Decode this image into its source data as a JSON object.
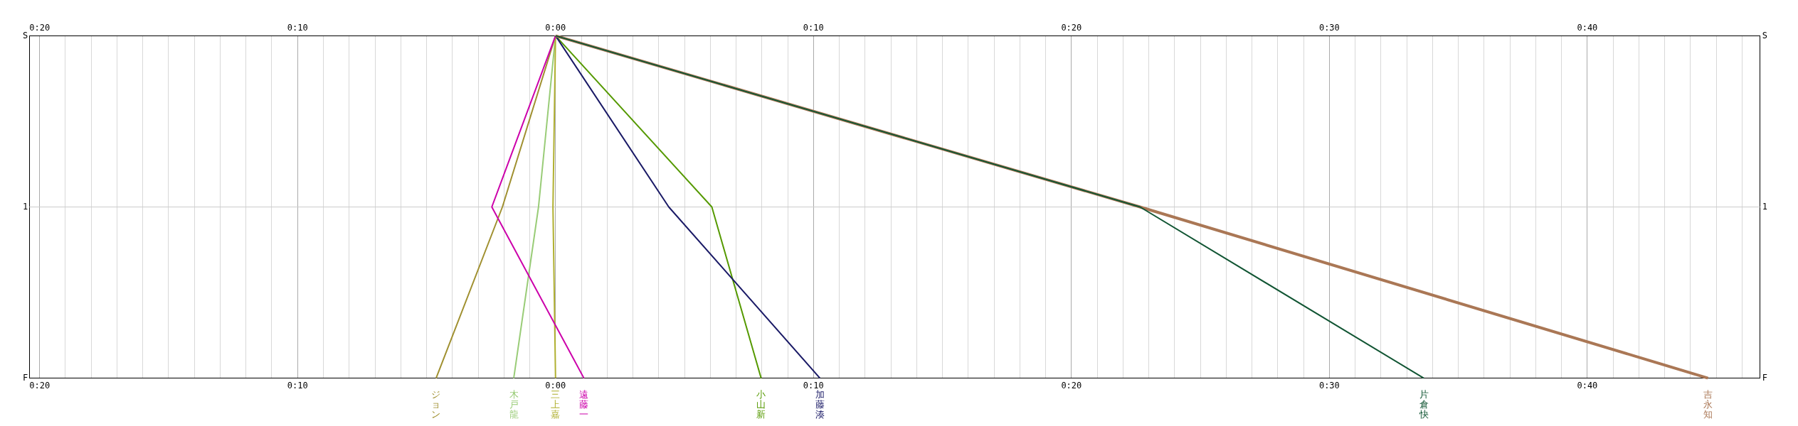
{
  "chart_data": {
    "type": "line",
    "grid": "x",
    "ref_lines": [
      {
        "axis": "y",
        "value": "1",
        "color": "#cccccc"
      }
    ],
    "legend": false,
    "marker": "none",
    "line_style": "solid",
    "xlim": [
      -20.4,
      46.7
    ],
    "x2lim": [
      -20.4,
      46.7
    ],
    "xticks": [
      {
        "value": -20,
        "label": "0:20"
      },
      {
        "value": -19,
        "label": null
      },
      {
        "value": -18,
        "label": null
      },
      {
        "value": -17,
        "label": null
      },
      {
        "value": -16,
        "label": null
      },
      {
        "value": -15,
        "label": null
      },
      {
        "value": -14,
        "label": null
      },
      {
        "value": -13,
        "label": null
      },
      {
        "value": -12,
        "label": null
      },
      {
        "value": -11,
        "label": null
      },
      {
        "value": -10,
        "label": "0:10"
      },
      {
        "value": -9,
        "label": null
      },
      {
        "value": -8,
        "label": null
      },
      {
        "value": -7,
        "label": null
      },
      {
        "value": -6,
        "label": null
      },
      {
        "value": -5,
        "label": null
      },
      {
        "value": -4,
        "label": null
      },
      {
        "value": -3,
        "label": null
      },
      {
        "value": -2,
        "label": null
      },
      {
        "value": -1,
        "label": null
      },
      {
        "value": 0,
        "label": "0:00"
      },
      {
        "value": 1,
        "label": null
      },
      {
        "value": 2,
        "label": null
      },
      {
        "value": 3,
        "label": null
      },
      {
        "value": 4,
        "label": null
      },
      {
        "value": 5,
        "label": null
      },
      {
        "value": 6,
        "label": null
      },
      {
        "value": 7,
        "label": null
      },
      {
        "value": 8,
        "label": null
      },
      {
        "value": 9,
        "label": null
      },
      {
        "value": 10,
        "label": "0:10"
      },
      {
        "value": 11,
        "label": null
      },
      {
        "value": 12,
        "label": null
      },
      {
        "value": 13,
        "label": null
      },
      {
        "value": 14,
        "label": null
      },
      {
        "value": 15,
        "label": null
      },
      {
        "value": 16,
        "label": null
      },
      {
        "value": 17,
        "label": null
      },
      {
        "value": 18,
        "label": null
      },
      {
        "value": 19,
        "label": null
      },
      {
        "value": 20,
        "label": "0:20"
      },
      {
        "value": 21,
        "label": null
      },
      {
        "value": 22,
        "label": null
      },
      {
        "value": 23,
        "label": null
      },
      {
        "value": 24,
        "label": null
      },
      {
        "value": 25,
        "label": null
      },
      {
        "value": 26,
        "label": null
      },
      {
        "value": 27,
        "label": null
      },
      {
        "value": 28,
        "label": null
      },
      {
        "value": 29,
        "label": null
      },
      {
        "value": 30,
        "label": "0:30"
      },
      {
        "value": 31,
        "label": null
      },
      {
        "value": 32,
        "label": null
      },
      {
        "value": 33,
        "label": null
      },
      {
        "value": 34,
        "label": null
      },
      {
        "value": 35,
        "label": null
      },
      {
        "value": 36,
        "label": null
      },
      {
        "value": 37,
        "label": null
      },
      {
        "value": 38,
        "label": null
      },
      {
        "value": 39,
        "label": null
      },
      {
        "value": 40,
        "label": "0:40"
      },
      {
        "value": 41,
        "label": null
      },
      {
        "value": 42,
        "label": null
      },
      {
        "value": 43,
        "label": null
      },
      {
        "value": 44,
        "label": null
      },
      {
        "value": 45,
        "label": null
      },
      {
        "value": 46,
        "label": null
      }
    ],
    "x2ticks": [
      {
        "value": -20,
        "label": "0:20"
      },
      {
        "value": -10,
        "label": "0:10"
      },
      {
        "value": 0,
        "label": "0:00"
      },
      {
        "value": 10,
        "label": "0:10"
      },
      {
        "value": 20,
        "label": "0:20"
      },
      {
        "value": 30,
        "label": "0:30"
      },
      {
        "value": 40,
        "label": "0:40"
      }
    ],
    "orientation": "horizontal",
    "categories": [
      "S",
      "1",
      "F"
    ],
    "series": [
      {
        "name": "ジョン",
        "color": "#a09030",
        "values": [
          0,
          -2.06,
          -4.63
        ]
      },
      {
        "name": "木戸龍",
        "color": "#99cc77",
        "values": [
          0,
          -0.66,
          -1.62
        ]
      },
      {
        "name": "三上嘉",
        "color": "#b0b030",
        "values": [
          0,
          -0.1,
          0
        ]
      },
      {
        "name": "遠藤一",
        "color": "#cc00aa",
        "values": [
          0,
          -2.47,
          1.1
        ]
      },
      {
        "name": "小山新",
        "color": "#559900",
        "values": [
          0,
          6.06,
          7.97
        ]
      },
      {
        "name": "加藤湊",
        "color": "#1a1a66",
        "values": [
          0,
          4.39,
          10.25
        ]
      },
      {
        "name": "吉永知",
        "color": "#aa7755",
        "values": [
          0,
          22.66,
          44.68
        ]
      },
      {
        "name": "片倉快",
        "color": "#115533",
        "values": [
          0,
          22.66,
          33.66
        ]
      }
    ]
  }
}
